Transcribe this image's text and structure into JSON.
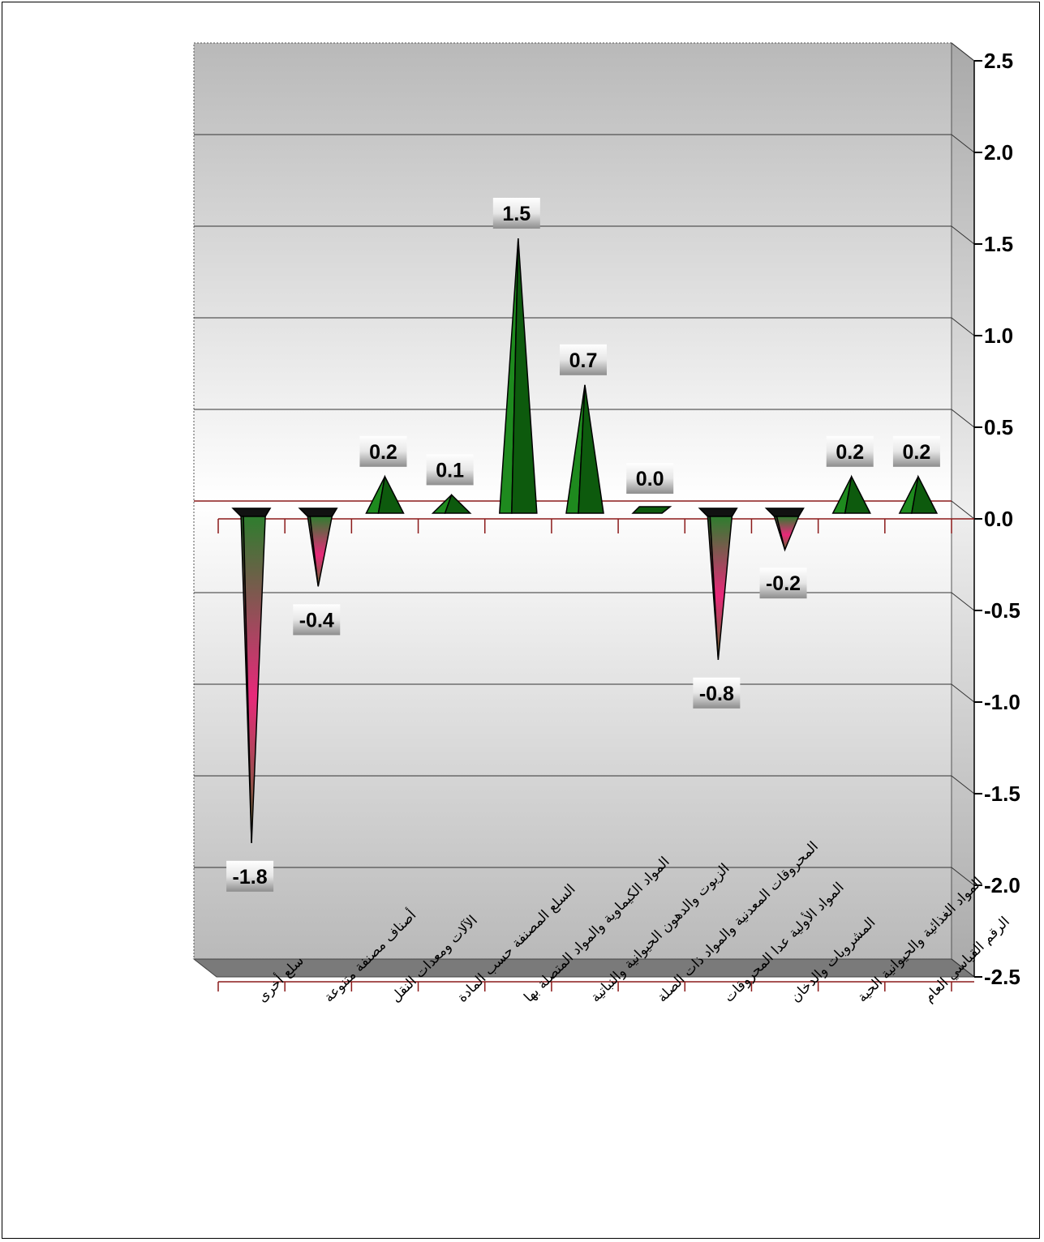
{
  "chart_data": {
    "type": "bar",
    "title": "",
    "xlabel": "",
    "ylabel": "",
    "ylim": [
      -2.5,
      2.5
    ],
    "yticks": [
      "2.5",
      "2.0",
      "1.5",
      "1.0",
      "0.5",
      "0.0",
      "-0.5",
      "-1.0",
      "-1.5",
      "-2.0",
      "-2.5"
    ],
    "grid": true,
    "categories": [
      "سلع أخرى",
      "أصناف مصنفة متنوعة",
      "الآلات ومعدات النقل",
      "السلع المصنفة حسب المادة",
      "المواد الكيماوية والمواد المتصلة بها",
      "الزيوت والدهون الحيوانية والنباتية",
      "المحروقات المعدنية والمواد ذات الصلة",
      "المواد الأولية عدا المحروقات",
      "المشروبات والدخان",
      "المواد الغذائية والحيوانية الحية",
      "الرقم القياسي العام"
    ],
    "values": [
      -1.8,
      -0.4,
      0.2,
      0.1,
      1.5,
      0.7,
      0.0,
      -0.8,
      -0.2,
      0.2,
      0.2
    ],
    "data_labels": [
      "-1.8",
      "-0.4",
      "0.2",
      "0.1",
      "1.5",
      "0.7",
      "0.0",
      "-0.8",
      "-0.2",
      "0.2",
      "0.2"
    ],
    "colors": {
      "positive_dark": "#0a4f0a",
      "positive_light": "#1f8a1f",
      "negative_top": "#2e7d2e",
      "negative_mid": "#e8287a",
      "zero_line": "#8b1a1a",
      "wall_gradient_edge": "#b8b8b8",
      "wall_gradient_center": "#ffffff",
      "floor": "#7a7a7a"
    }
  }
}
